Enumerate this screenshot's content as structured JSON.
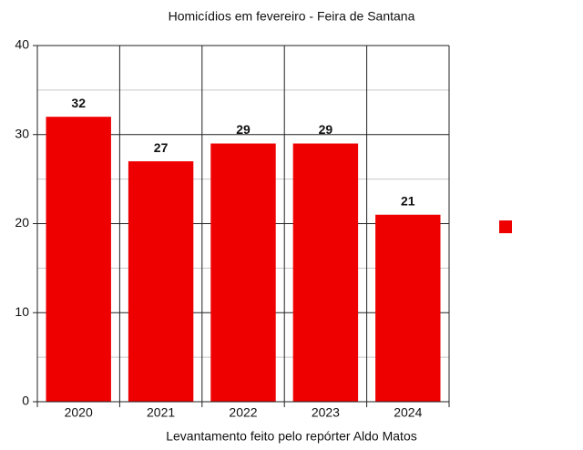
{
  "chart_data": {
    "type": "bar",
    "title": "Homicídios em fevereiro - Feira de Santana",
    "x_label": "Levantamento feito pelo repórter Aldo Matos",
    "categories": [
      "2020",
      "2021",
      "2022",
      "2023",
      "2024"
    ],
    "values": [
      32,
      27,
      29,
      29,
      21
    ],
    "color": "#ee0000",
    "ylim": [
      0,
      40
    ],
    "yticks": [
      0,
      10,
      20,
      30,
      40
    ],
    "minor_yticks": [
      5,
      15,
      25,
      35
    ],
    "grid": true
  }
}
